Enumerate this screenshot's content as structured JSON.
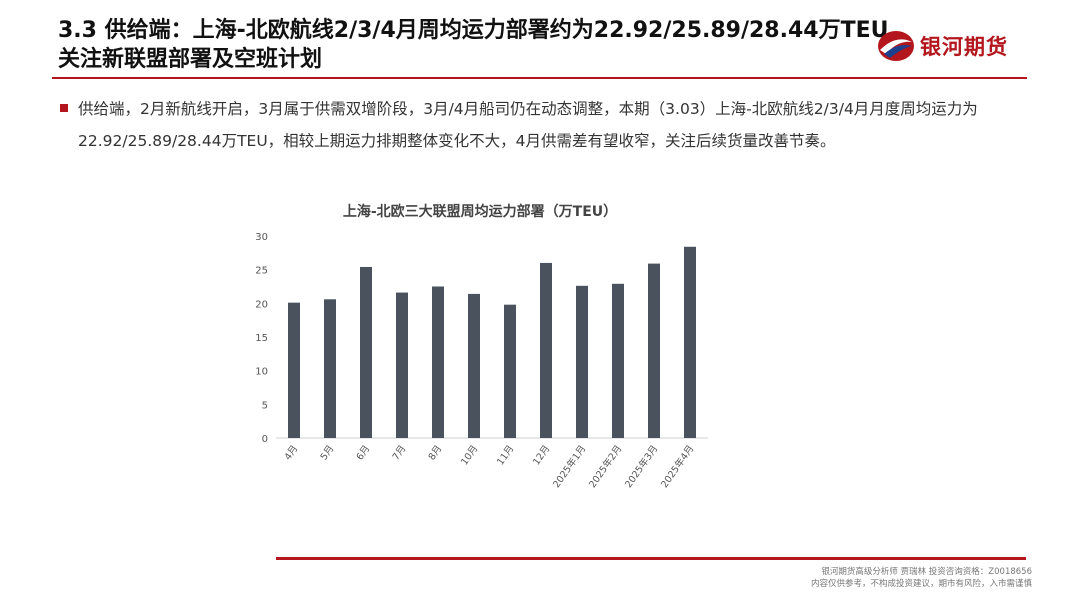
{
  "slide": {
    "title": "3.3 供给端：上海-北欧航线2/3/4月周均运力部署约为22.92/25.89/28.44万TEU，关注新联盟部署及空班计划",
    "logo_text": "银河期货",
    "bullet": "供给端，2月新航线开启，3月属于供需双增阶段，3月/4月船司仍在动态调整，本期（3.03）上海-北欧航线2/3/4月月度周均运力为22.92/25.89/28.44万TEU，相较上期运力排期整体变化不大，4月供需差有望收窄，关注后续货量改善节奏。",
    "footer_line1": "银河期货高级分析师 贾瑞林 投资咨询资格：Z0018656",
    "footer_line2": "内容仅供参考，不构成投资建议，期市有风险，入市需谨慎"
  },
  "colors": {
    "accent": "#b3171d",
    "bar": "#4a525d",
    "logo_blue": "#1e3f8c"
  },
  "chart_data": {
    "type": "bar",
    "title": "上海-北欧三大联盟周均运力部署（万TEU）",
    "categories": [
      "4月",
      "5月",
      "6月",
      "7月",
      "8月",
      "10月",
      "11月",
      "12月",
      "2025年1月",
      "2025年2月",
      "2025年3月",
      "2025年4月"
    ],
    "values": [
      20.1,
      20.6,
      25.4,
      21.6,
      22.5,
      21.4,
      19.8,
      26.0,
      22.6,
      22.9,
      25.9,
      28.4
    ],
    "yticks": [
      "30",
      "25",
      "20",
      "15",
      "10",
      "5",
      "0"
    ],
    "ylim": [
      0,
      30
    ],
    "grid": false
  }
}
